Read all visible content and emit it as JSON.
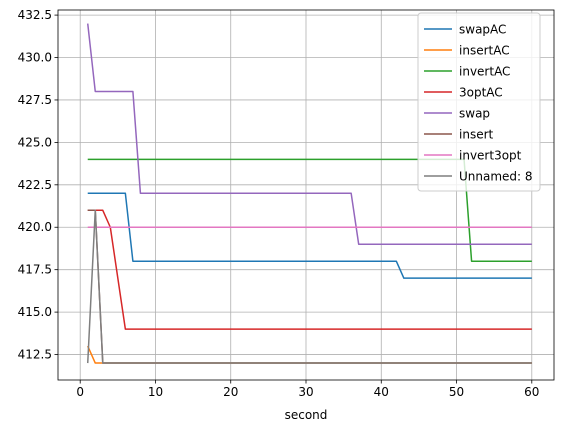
{
  "chart_data": {
    "type": "line",
    "title": "",
    "xlabel": "second",
    "ylabel": "",
    "xlim": [
      -2.95,
      62.95
    ],
    "ylim": [
      411.0,
      432.8
    ],
    "xticks": [
      0,
      10,
      20,
      30,
      40,
      50,
      60
    ],
    "xtick_labels": [
      "0",
      "10",
      "20",
      "30",
      "40",
      "50",
      "60"
    ],
    "yticks": [
      412.5,
      415.0,
      417.5,
      420.0,
      422.5,
      425.0,
      427.5,
      430.0,
      432.5
    ],
    "ytick_labels": [
      "412.5",
      "415.0",
      "417.5",
      "420.0",
      "422.5",
      "425.0",
      "427.5",
      "430.0",
      "432.5"
    ],
    "grid": true,
    "legend_position": "upper right",
    "series": [
      {
        "name": "swapAC",
        "color": "#1f77b4",
        "points": [
          [
            1,
            422
          ],
          [
            6,
            422
          ],
          [
            7,
            418
          ],
          [
            42,
            418
          ],
          [
            43,
            417
          ],
          [
            60,
            417
          ]
        ]
      },
      {
        "name": "insertAC",
        "color": "#ff7f0e",
        "points": [
          [
            1,
            413
          ],
          [
            2,
            412
          ],
          [
            60,
            412
          ]
        ]
      },
      {
        "name": "invertAC",
        "color": "#2ca02c",
        "points": [
          [
            1,
            424
          ],
          [
            51,
            424
          ],
          [
            52,
            418
          ],
          [
            60,
            418
          ]
        ]
      },
      {
        "name": "3optAC",
        "color": "#d62728",
        "points": [
          [
            1,
            421
          ],
          [
            3,
            421
          ],
          [
            4,
            420
          ],
          [
            6,
            414
          ],
          [
            60,
            414
          ]
        ]
      },
      {
        "name": "swap",
        "color": "#9467bd",
        "points": [
          [
            1,
            432
          ],
          [
            2,
            428
          ],
          [
            7,
            428
          ],
          [
            8,
            422
          ],
          [
            36,
            422
          ],
          [
            37,
            419
          ],
          [
            60,
            419
          ]
        ]
      },
      {
        "name": "insert",
        "color": "#8c564b",
        "points": [
          [
            1,
            421
          ],
          [
            2,
            421
          ],
          [
            3,
            412
          ],
          [
            60,
            412
          ]
        ]
      },
      {
        "name": "invert3opt",
        "color": "#e377c2",
        "points": [
          [
            1,
            420
          ],
          [
            60,
            420
          ]
        ]
      },
      {
        "name": "Unnamed: 8",
        "color": "#7f7f7f",
        "points": [
          [
            1,
            412
          ],
          [
            2,
            421
          ],
          [
            3,
            412
          ],
          [
            60,
            412
          ]
        ]
      }
    ]
  }
}
